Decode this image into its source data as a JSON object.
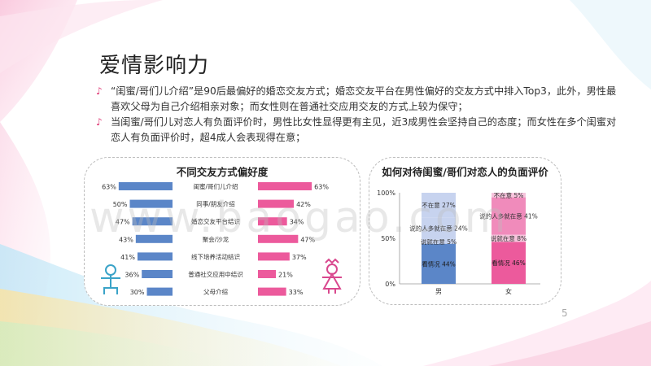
{
  "slide": {
    "title": "爱情影响力",
    "bullet_symbol": "♪",
    "bullets": [
      "“闺蜜/哥们儿介绍”是90后最偏好的婚恋交友方式；婚恋交友平台在男性偏好的交友方式中排入Top3，此外，男性最喜欢父母为自己介绍相亲对象；而女性则在普通社交应用交友的方式上较为保守；",
      "当闺蜜/哥们儿对恋人有负面评价时，男性比女性显得更有主见，近3成男性会坚持自己的态度；而女性在多个闺蜜对恋人有负面评价时，超4成人会表现得在意；"
    ],
    "watermark": "www.baogao.com",
    "page_number": "5"
  },
  "colors": {
    "male": "#5b86c8",
    "female": "#ec5a9c",
    "male_light": "#c7d3ef",
    "female_light": "#f6c4dc",
    "female_mid": "#f08bbb",
    "bullet": "#e0407a"
  },
  "chart_data": [
    {
      "type": "bar",
      "title": "不同交友方式偏好度",
      "categories": [
        "闺蜜/哥们儿介绍",
        "同事/朋友介绍",
        "婚恋交友平台结识",
        "聚会/沙龙",
        "线下培养活动结识",
        "普通社交应用中结识",
        "父母介绍"
      ],
      "series": [
        {
          "key": "male",
          "values": [
            63,
            50,
            47,
            43,
            41,
            36,
            30
          ]
        },
        {
          "key": "female",
          "values": [
            63,
            42,
            34,
            47,
            37,
            21,
            33
          ]
        }
      ],
      "unit": "%",
      "icons": [
        "male-figure-icon",
        "female-figure-icon"
      ]
    },
    {
      "type": "bar",
      "stacked": true,
      "title": "如何对待闺蜜/哥们对恋人的负面评价",
      "categories": [
        "男",
        "女"
      ],
      "yticks": [
        "0%",
        "50%",
        "100%"
      ],
      "ylim": [
        0,
        100
      ],
      "segments": {
        "男": [
          {
            "label": "看情况",
            "value": 44,
            "label_text": "看情况 44%"
          },
          {
            "label": "说就在意",
            "value": 5,
            "label_text": "说就在意 5%"
          },
          {
            "label": "说的人多就在意",
            "value": 24,
            "label_text": "说的人多就在意 24%"
          },
          {
            "label": "不在意",
            "value": 27,
            "label_text": "不在意 27%"
          }
        ],
        "女": [
          {
            "label": "看情况",
            "value": 46,
            "label_text": "看情况 46%"
          },
          {
            "label": "说就在意",
            "value": 8,
            "label_text": "说就在意 8%"
          },
          {
            "label": "说的人多就在意",
            "value": 41,
            "label_text": "说的人多就在意 41%"
          },
          {
            "label": "不在意",
            "value": 5,
            "label_text": "不在意 5%"
          }
        ]
      }
    }
  ]
}
